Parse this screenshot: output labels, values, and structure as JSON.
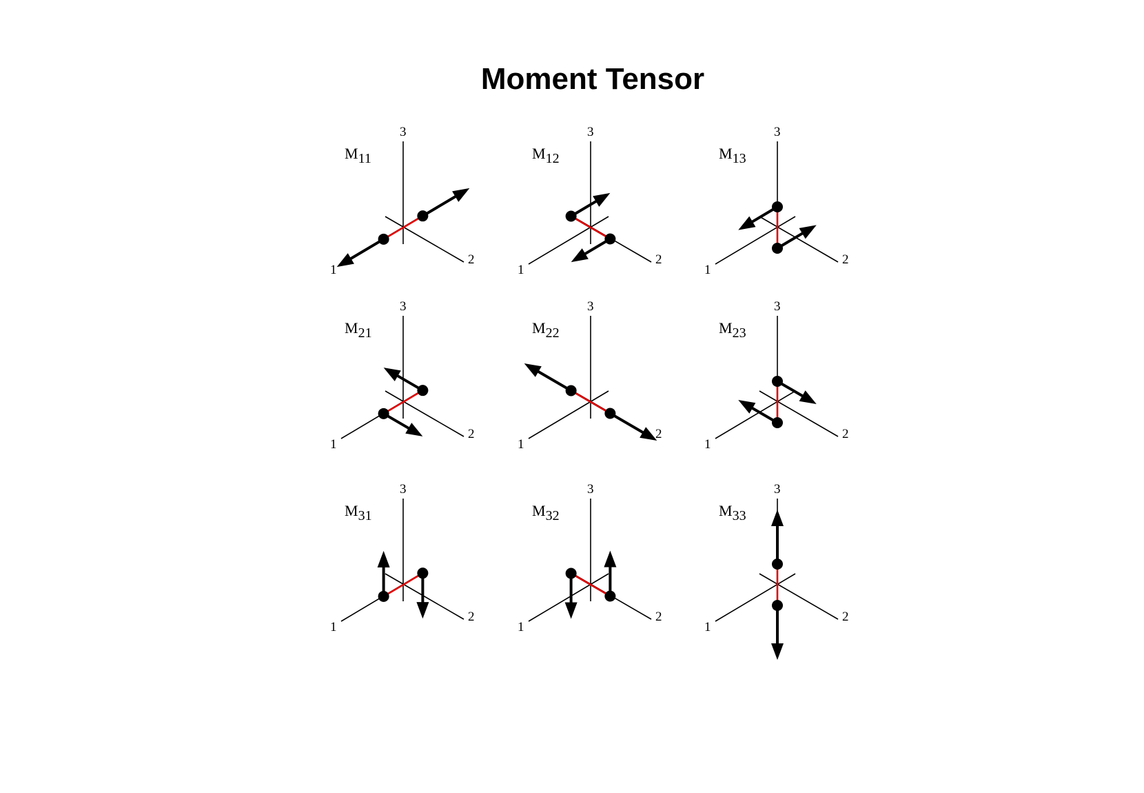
{
  "title": "Moment Tensor",
  "axis_labels": {
    "axis1": "1",
    "axis2": "2",
    "axis3": "3"
  },
  "colors": {
    "force_couple": "#000000",
    "lever_arm": "#e00000"
  },
  "tensor_components": [
    {
      "id": "M11",
      "symbol": "M",
      "subscript": "11",
      "force_direction": "1",
      "arm_direction": "1"
    },
    {
      "id": "M12",
      "symbol": "M",
      "subscript": "12",
      "force_direction": "1",
      "arm_direction": "2"
    },
    {
      "id": "M13",
      "symbol": "M",
      "subscript": "13",
      "force_direction": "1",
      "arm_direction": "3"
    },
    {
      "id": "M21",
      "symbol": "M",
      "subscript": "21",
      "force_direction": "2",
      "arm_direction": "1"
    },
    {
      "id": "M22",
      "symbol": "M",
      "subscript": "22",
      "force_direction": "2",
      "arm_direction": "2"
    },
    {
      "id": "M23",
      "symbol": "M",
      "subscript": "23",
      "force_direction": "2",
      "arm_direction": "3"
    },
    {
      "id": "M31",
      "symbol": "M",
      "subscript": "31",
      "force_direction": "3",
      "arm_direction": "1"
    },
    {
      "id": "M32",
      "symbol": "M",
      "subscript": "32",
      "force_direction": "3",
      "arm_direction": "2"
    },
    {
      "id": "M33",
      "symbol": "M",
      "subscript": "33",
      "force_direction": "3",
      "arm_direction": "3"
    }
  ]
}
